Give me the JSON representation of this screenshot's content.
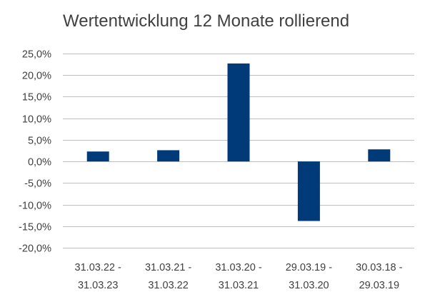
{
  "chart_data": {
    "type": "bar",
    "title": "Wertentwicklung 12 Monate rollierend",
    "categories": [
      [
        "31.03.22 -",
        "31.03.23"
      ],
      [
        "31.03.21 -",
        "31.03.22"
      ],
      [
        "31.03.20 -",
        "31.03.21"
      ],
      [
        "29.03.19 -",
        "31.03.20"
      ],
      [
        "30.03.18 -",
        "29.03.19"
      ]
    ],
    "values": [
      2.3,
      2.6,
      22.7,
      -13.8,
      2.8
    ],
    "ylim": [
      -20,
      25
    ],
    "yticks": [
      25,
      20,
      15,
      10,
      5,
      0,
      -5,
      -10,
      -15,
      -20
    ],
    "ytick_labels": [
      "25,0%",
      "20,0%",
      "15,0%",
      "10,0%",
      "5,0%",
      "0,0%",
      "-5,0%",
      "-10,0%",
      "-15,0%",
      "-20,0%"
    ],
    "grid": true,
    "bar_color": "#003A78",
    "grid_color": "#BFBFBF",
    "legend": "none"
  }
}
